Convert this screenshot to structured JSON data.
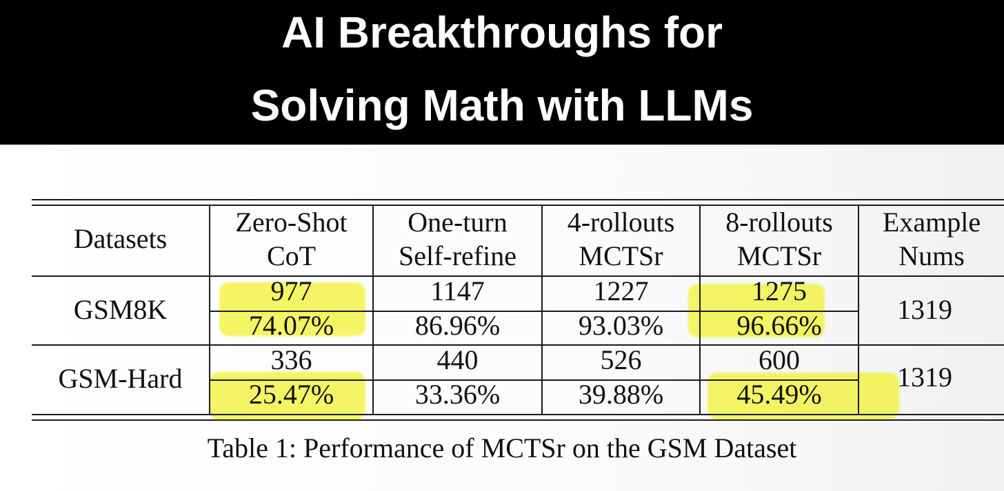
{
  "banner": {
    "line1": "AI Breakthroughs for",
    "line2": "Solving Math with LLMs"
  },
  "table": {
    "headers": [
      {
        "line1": "Datasets",
        "line2": ""
      },
      {
        "line1": "Zero-Shot",
        "line2": "CoT"
      },
      {
        "line1": "One-turn",
        "line2": "Self-refine"
      },
      {
        "line1": "4-rollouts",
        "line2": "MCTSr"
      },
      {
        "line1": "8-rollouts",
        "line2": "MCTSr"
      },
      {
        "line1": "Example",
        "line2": "Nums"
      }
    ],
    "rows": [
      {
        "dataset": "GSM8K",
        "counts": [
          "977",
          "1147",
          "1227",
          "1275"
        ],
        "percents": [
          "74.07%",
          "86.96%",
          "93.03%",
          "96.66%"
        ],
        "nums": "1319"
      },
      {
        "dataset": "GSM-Hard",
        "counts": [
          "336",
          "440",
          "526",
          "600"
        ],
        "percents": [
          "25.47%",
          "33.36%",
          "39.88%",
          "45.49%"
        ],
        "nums": "1319"
      }
    ],
    "caption": "Table 1: Performance of MCTSr on the GSM Dataset"
  },
  "highlights": {
    "color": "#f2f23a",
    "cells": [
      "Zero-Shot CoT / GSM8K",
      "8-rollouts MCTSr / GSM8K",
      "Zero-Shot CoT / GSM-Hard percent",
      "8-rollouts MCTSr / GSM-Hard percent"
    ]
  }
}
